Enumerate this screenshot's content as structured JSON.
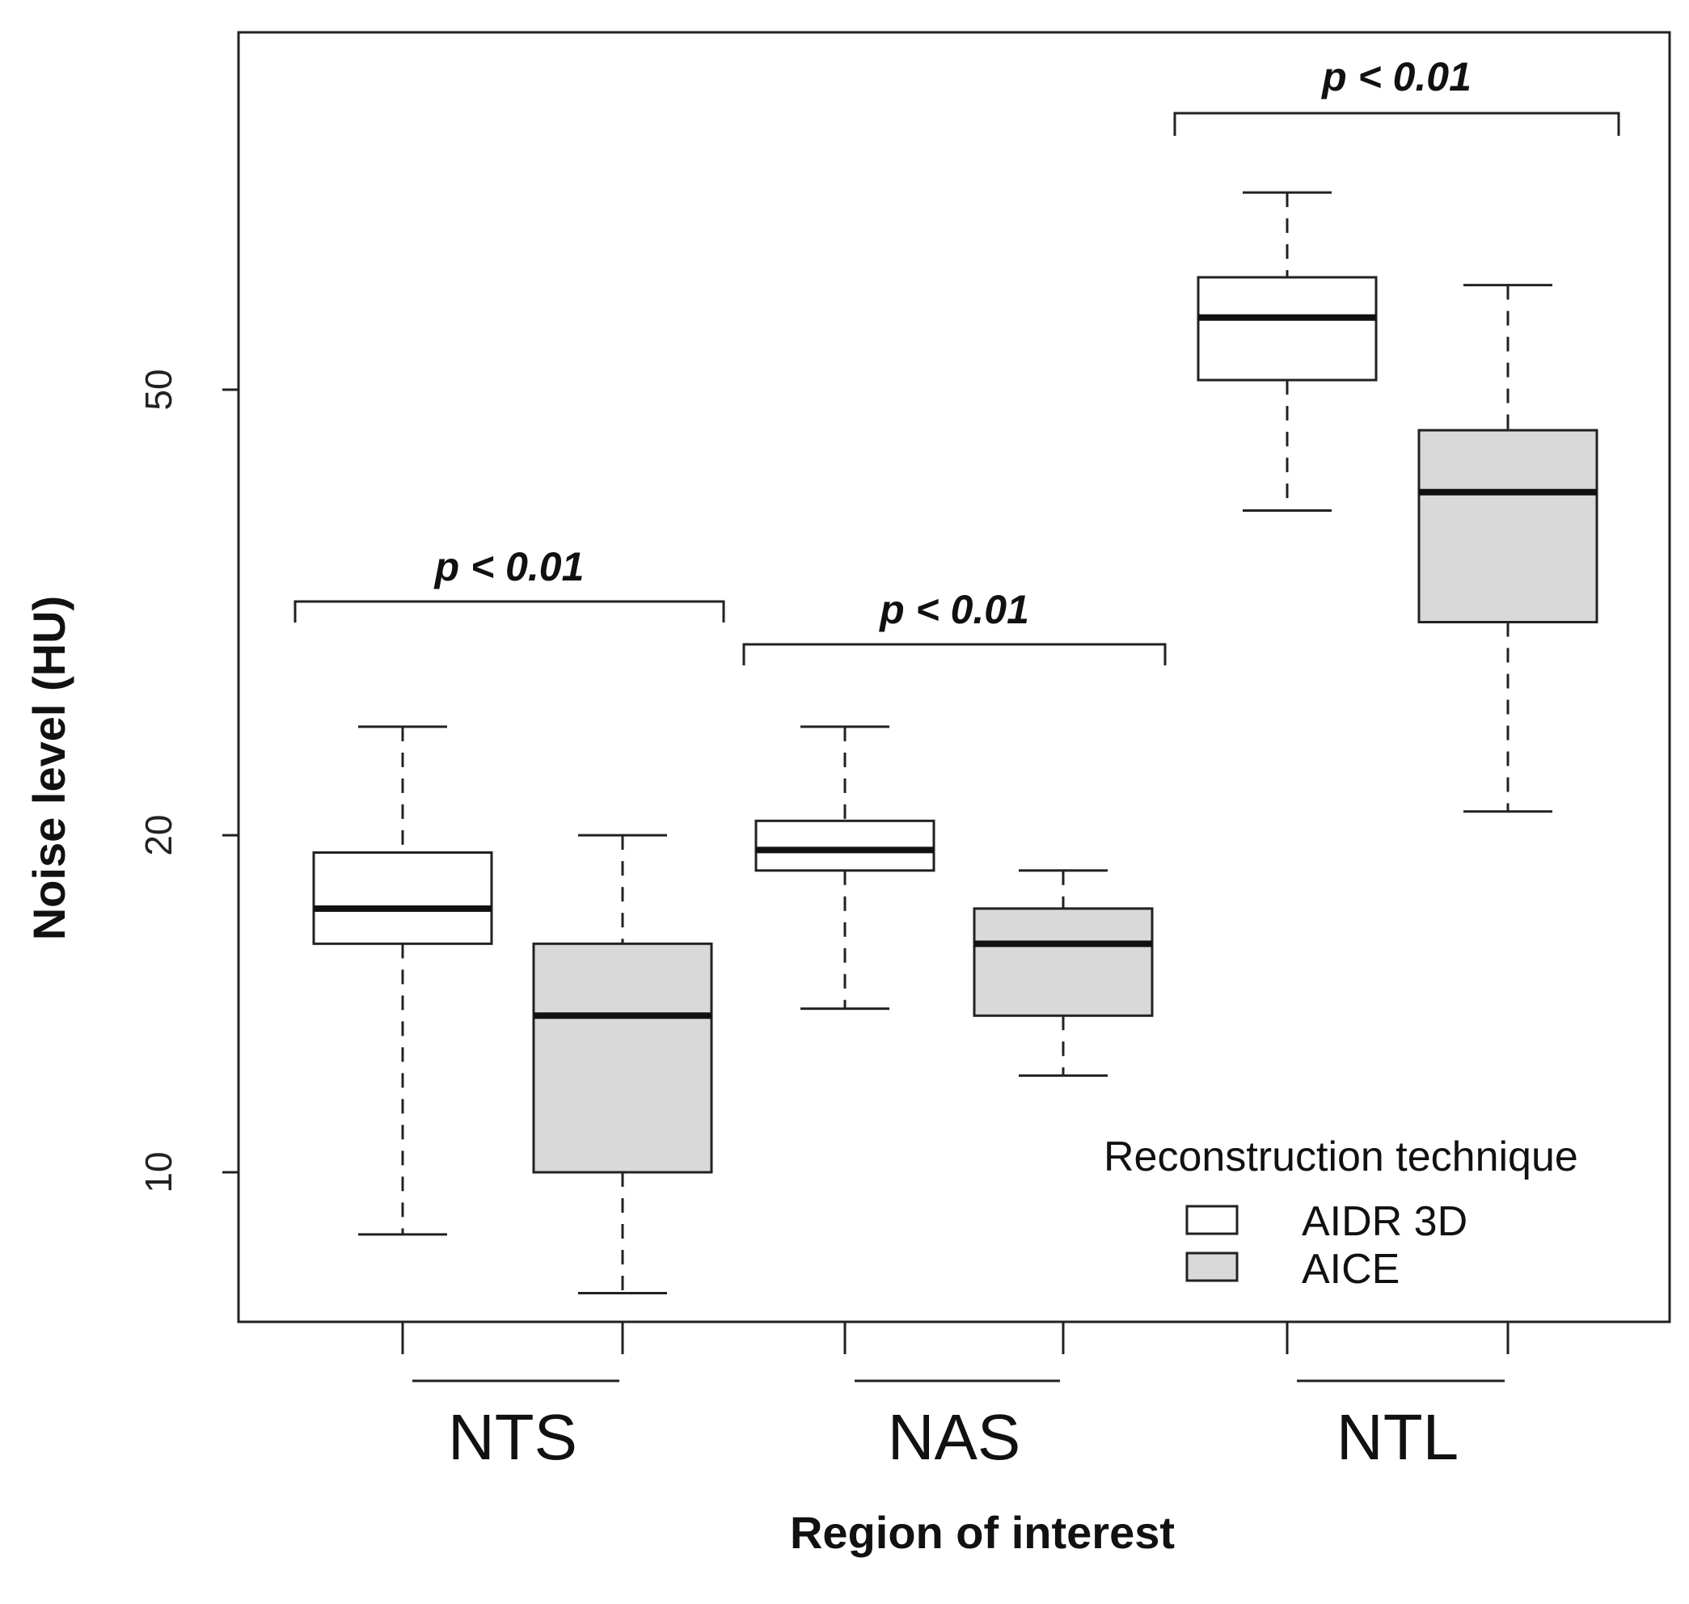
{
  "chart_data": {
    "type": "boxplot",
    "title": "",
    "xlabel": "Region of interest",
    "ylabel": "Noise level (HU)",
    "y_scale": "log",
    "ylim": [
      7.5,
      105
    ],
    "yticks": [
      10,
      20,
      50
    ],
    "categories": [
      "NTS",
      "NAS",
      "NTL"
    ],
    "legend": {
      "title": "Reconstruction technique",
      "position": "bottom-right"
    },
    "series": [
      {
        "name": "AIDR 3D",
        "fill": "#ffffff",
        "boxes": [
          {
            "whisker_low": 8.8,
            "q1": 16.0,
            "median": 17.2,
            "q3": 19.3,
            "whisker_high": 25.0
          },
          {
            "whisker_low": 14.0,
            "q1": 18.6,
            "median": 19.4,
            "q3": 20.6,
            "whisker_high": 25.0
          },
          {
            "whisker_low": 39.0,
            "q1": 51.0,
            "median": 58.0,
            "q3": 63.0,
            "whisker_high": 75.0
          }
        ]
      },
      {
        "name": "AICE",
        "fill": "#d9d9d9",
        "boxes": [
          {
            "whisker_low": 7.8,
            "q1": 10.0,
            "median": 13.8,
            "q3": 16.0,
            "whisker_high": 20.0
          },
          {
            "whisker_low": 12.2,
            "q1": 13.8,
            "median": 16.0,
            "q3": 17.2,
            "whisker_high": 18.6
          },
          {
            "whisker_low": 21.0,
            "q1": 31.0,
            "median": 40.5,
            "q3": 46.0,
            "whisker_high": 62.0
          }
        ]
      }
    ],
    "annotations": [
      {
        "text": "p < 0.01",
        "category": "NTS"
      },
      {
        "text": "p < 0.01",
        "category": "NAS"
      },
      {
        "text": "p < 0.01",
        "category": "NTL"
      }
    ]
  }
}
